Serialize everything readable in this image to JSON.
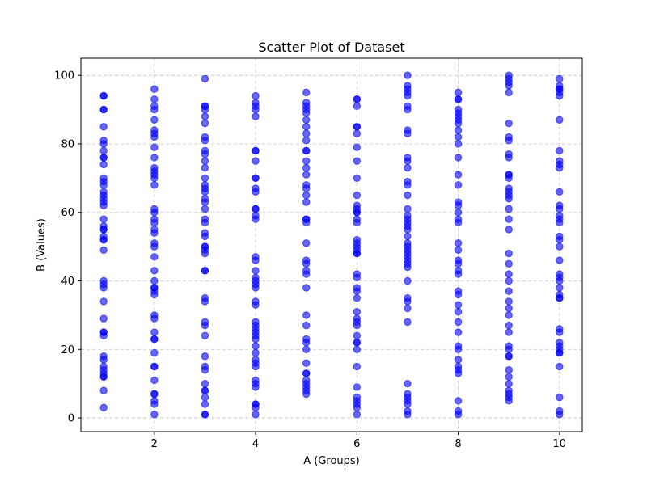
{
  "chart_data": {
    "type": "scatter",
    "title": "Scatter Plot of Dataset",
    "xlabel": "A (Groups)",
    "ylabel": "B (Values)",
    "xlim": [
      0.55,
      10.45
    ],
    "ylim": [
      -4.0,
      105.0
    ],
    "xticks": [
      2,
      4,
      6,
      8,
      10
    ],
    "yticks": [
      0,
      20,
      40,
      60,
      80,
      100
    ],
    "grid": true,
    "marker_color": "#0000ff",
    "marker_alpha": 0.6,
    "series": [
      {
        "x": 1,
        "values": [
          94,
          94,
          90,
          90,
          85,
          81,
          80,
          78,
          76,
          76,
          74,
          70,
          69,
          68,
          66,
          65,
          64,
          63,
          62,
          58,
          56,
          55,
          55,
          53,
          52,
          52,
          49,
          40,
          39,
          38,
          34,
          29,
          25,
          25,
          24,
          18,
          17,
          15,
          14,
          13,
          12,
          12,
          8,
          3
        ]
      },
      {
        "x": 2,
        "values": [
          96,
          93,
          91,
          90,
          87,
          84,
          83,
          82,
          79,
          76,
          73,
          72,
          71,
          70,
          68,
          61,
          60,
          58,
          57,
          55,
          54,
          51,
          50,
          47,
          43,
          40,
          38,
          38,
          37,
          36,
          30,
          29,
          25,
          23,
          23,
          19,
          15,
          15,
          11,
          7,
          7,
          5,
          4,
          1
        ]
      },
      {
        "x": 3,
        "values": [
          99,
          91,
          91,
          90,
          88,
          86,
          82,
          81,
          78,
          77,
          75,
          73,
          70,
          68,
          67,
          66,
          64,
          63,
          61,
          58,
          57,
          54,
          53,
          50,
          50,
          49,
          48,
          43,
          43,
          35,
          34,
          28,
          27,
          24,
          18,
          15,
          14,
          10,
          8,
          8,
          6,
          4,
          1,
          1
        ]
      },
      {
        "x": 4,
        "values": [
          94,
          92,
          91,
          90,
          88,
          78,
          78,
          75,
          70,
          70,
          67,
          66,
          61,
          61,
          59,
          58,
          47,
          46,
          43,
          41,
          40,
          39,
          38,
          34,
          33,
          28,
          27,
          26,
          25,
          24,
          23,
          21,
          19,
          17,
          16,
          15,
          11,
          10,
          9,
          4,
          4,
          3,
          1
        ]
      },
      {
        "x": 5,
        "values": [
          95,
          92,
          91,
          90,
          89,
          87,
          85,
          83,
          81,
          78,
          78,
          75,
          73,
          71,
          68,
          67,
          65,
          63,
          58,
          58,
          57,
          51,
          46,
          45,
          43,
          42,
          38,
          30,
          27,
          23,
          22,
          20,
          16,
          13,
          13,
          11,
          10,
          9,
          8,
          7
        ]
      },
      {
        "x": 6,
        "values": [
          93,
          93,
          91,
          85,
          85,
          83,
          79,
          75,
          70,
          65,
          62,
          61,
          60,
          60,
          58,
          57,
          52,
          51,
          50,
          49,
          48,
          48,
          42,
          41,
          38,
          37,
          35,
          31,
          29,
          28,
          27,
          24,
          22,
          22,
          20,
          15,
          9,
          6,
          5,
          4,
          3,
          1
        ]
      },
      {
        "x": 7,
        "values": [
          100,
          97,
          96,
          95,
          94,
          91,
          90,
          84,
          83,
          76,
          75,
          73,
          69,
          68,
          65,
          61,
          59,
          58,
          57,
          56,
          55,
          53,
          51,
          50,
          49,
          48,
          47,
          46,
          45,
          44,
          40,
          35,
          34,
          32,
          28,
          10,
          7,
          6,
          5,
          4,
          2,
          1
        ]
      },
      {
        "x": 8,
        "values": [
          95,
          93,
          93,
          90,
          89,
          88,
          87,
          86,
          84,
          82,
          80,
          76,
          71,
          68,
          63,
          62,
          60,
          58,
          57,
          51,
          49,
          46,
          45,
          43,
          42,
          37,
          36,
          33,
          31,
          28,
          25,
          21,
          20,
          17,
          15,
          14,
          13,
          5,
          2,
          1
        ]
      },
      {
        "x": 9,
        "values": [
          100,
          99,
          98,
          97,
          95,
          86,
          82,
          81,
          77,
          76,
          71,
          71,
          70,
          67,
          66,
          65,
          64,
          61,
          58,
          55,
          48,
          45,
          42,
          40,
          37,
          34,
          32,
          30,
          27,
          25,
          21,
          20,
          18,
          18,
          14,
          12,
          10,
          8,
          7,
          6,
          5
        ]
      },
      {
        "x": 10,
        "values": [
          99,
          97,
          96,
          96,
          95,
          94,
          87,
          78,
          75,
          74,
          73,
          66,
          62,
          61,
          59,
          58,
          57,
          53,
          52,
          50,
          46,
          42,
          41,
          40,
          38,
          36,
          35,
          35,
          26,
          25,
          22,
          21,
          20,
          19,
          19,
          15,
          6,
          2,
          1
        ]
      }
    ]
  }
}
